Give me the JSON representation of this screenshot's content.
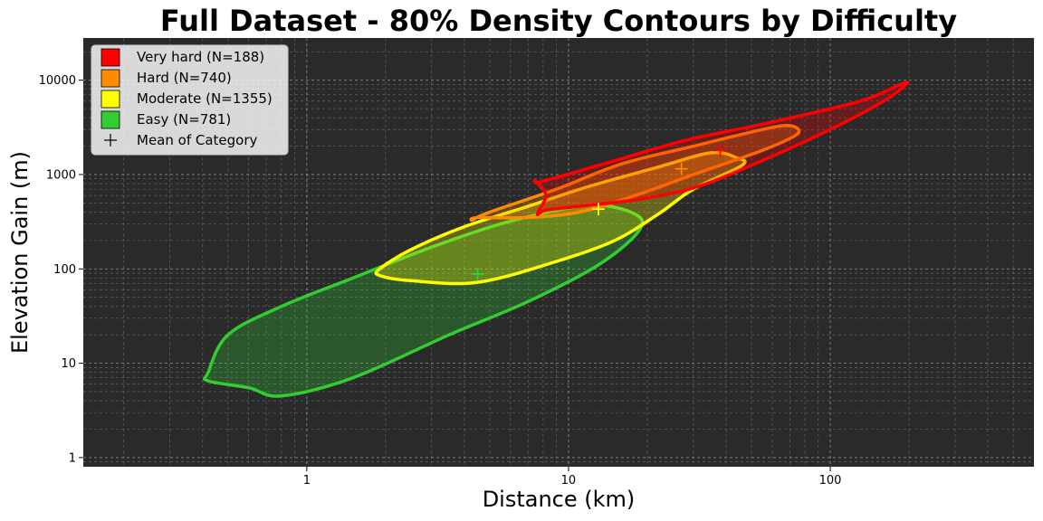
{
  "chart_data": {
    "type": "contour",
    "title": "Full Dataset - 80% Density Contours by Difficulty",
    "xlabel": "Distance (km)",
    "ylabel": "Elevation Gain (m)",
    "x_scale": "log",
    "y_scale": "log",
    "xlim": [
      0.14,
      600
    ],
    "ylim": [
      0.8,
      28000
    ],
    "x_ticks": [
      {
        "value": 1,
        "label": "1"
      },
      {
        "value": 10,
        "label": "10"
      },
      {
        "value": 100,
        "label": "100"
      }
    ],
    "y_ticks": [
      {
        "value": 1,
        "label": "1"
      },
      {
        "value": 10,
        "label": "10"
      },
      {
        "value": 100,
        "label": "100"
      },
      {
        "value": 1000,
        "label": "1000"
      },
      {
        "value": 10000,
        "label": "10000"
      }
    ],
    "grid": true,
    "background_color": "#2a2a2a",
    "legend_position": "top-left",
    "mean_marker_label": "Mean of Category",
    "series": [
      {
        "name": "Very hard (N=188)",
        "color": "#ff0000",
        "mean": [
          38,
          1800
        ],
        "contour": [
          [
            8,
            850
          ],
          [
            15,
            1400
          ],
          [
            28,
            2300
          ],
          [
            60,
            3600
          ],
          [
            130,
            6000
          ],
          [
            185,
            9000
          ],
          [
            195,
            9000
          ],
          [
            160,
            6000
          ],
          [
            100,
            3000
          ],
          [
            50,
            1250
          ],
          [
            30,
            720
          ],
          [
            18,
            540
          ],
          [
            11,
            460
          ],
          [
            8.2,
            420
          ],
          [
            7.6,
            380
          ],
          [
            8.2,
            600
          ],
          [
            7.5,
            850
          ]
        ]
      },
      {
        "name": "Hard (N=740)",
        "color": "#ff8c00",
        "mean": [
          27,
          1150
        ],
        "contour": [
          [
            5,
            400
          ],
          [
            9,
            700
          ],
          [
            16,
            1300
          ],
          [
            30,
            2000
          ],
          [
            55,
            3000
          ],
          [
            70,
            3300
          ],
          [
            75,
            2700
          ],
          [
            55,
            1800
          ],
          [
            30,
            1000
          ],
          [
            18,
            600
          ],
          [
            11,
            400
          ],
          [
            7,
            350
          ],
          [
            4.5,
            350
          ],
          [
            4.3,
            330
          ]
        ]
      },
      {
        "name": "Moderate (N=1355)",
        "color": "#ffff00",
        "mean": [
          13,
          430
        ],
        "contour": [
          [
            1.9,
            100
          ],
          [
            2.5,
            160
          ],
          [
            4,
            280
          ],
          [
            7,
            460
          ],
          [
            12,
            750
          ],
          [
            22,
            1200
          ],
          [
            35,
            1700
          ],
          [
            44,
            1500
          ],
          [
            46,
            1250
          ],
          [
            30,
            700
          ],
          [
            22,
            380
          ],
          [
            15,
            200
          ],
          [
            9,
            120
          ],
          [
            4.5,
            72
          ],
          [
            2.5,
            75
          ],
          [
            1.9,
            85
          ]
        ]
      },
      {
        "name": "Easy (N=781)",
        "color": "#32cd32",
        "mean": [
          4.5,
          88
        ],
        "contour": [
          [
            0.42,
            8
          ],
          [
            0.5,
            20
          ],
          [
            0.8,
            40
          ],
          [
            1.5,
            80
          ],
          [
            3,
            170
          ],
          [
            6,
            320
          ],
          [
            12,
            470
          ],
          [
            18,
            380
          ],
          [
            18.5,
            250
          ],
          [
            13,
            110
          ],
          [
            7,
            45
          ],
          [
            3.5,
            20
          ],
          [
            1.5,
            7
          ],
          [
            0.8,
            4.5
          ],
          [
            0.6,
            5.5
          ],
          [
            0.42,
            6.5
          ]
        ]
      }
    ]
  }
}
